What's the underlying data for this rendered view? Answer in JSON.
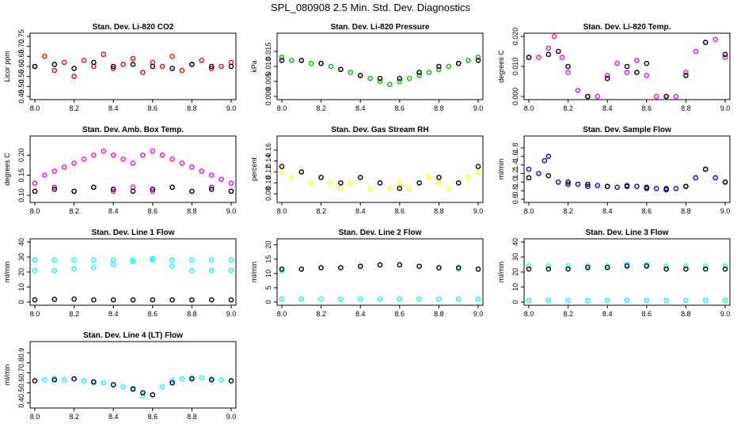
{
  "page": {
    "title": "SPL_080908  2.5 Min. Std. Dev. Diagnostics"
  },
  "chart_data": [
    {
      "type": "scatter",
      "title": "Stan. Dev. Li-820 CO2",
      "ylabel": "Licor ppm",
      "xlim": [
        8.0,
        9.0
      ],
      "ylim": [
        0.45,
        0.75
      ],
      "xticks": [
        "8.0",
        "8.2",
        "8.4",
        "8.6",
        "8.8",
        "9.0"
      ],
      "yticks": [
        "0.45",
        "0.50",
        "0.55",
        "0.60",
        "0.65",
        "0.70",
        "0.75"
      ],
      "colors": [
        "#ff0000",
        "#000000"
      ],
      "series": [
        {
          "color": "#ff0000",
          "x": [
            8.0,
            8.05,
            8.1,
            8.15,
            8.2,
            8.25,
            8.3,
            8.35,
            8.4,
            8.45,
            8.5,
            8.55,
            8.6,
            8.65,
            8.7,
            8.75,
            8.8,
            8.85,
            8.9,
            8.95,
            9.0
          ],
          "y": [
            0.6,
            0.65,
            0.58,
            0.62,
            0.55,
            0.63,
            0.6,
            0.66,
            0.59,
            0.61,
            0.64,
            0.57,
            0.62,
            0.6,
            0.65,
            0.58,
            0.61,
            0.63,
            0.59,
            0.6,
            0.62
          ]
        },
        {
          "color": "#000000",
          "x": [
            8.0,
            8.1,
            8.2,
            8.3,
            8.4,
            8.5,
            8.6,
            8.7,
            8.8,
            8.9,
            9.0
          ],
          "y": [
            0.6,
            0.61,
            0.59,
            0.62,
            0.6,
            0.61,
            0.6,
            0.59,
            0.61,
            0.6,
            0.6
          ]
        }
      ]
    },
    {
      "type": "scatter",
      "title": "Stan. Dev. Li-820 Pressure",
      "ylabel": "kPa",
      "xlim": [
        8.0,
        9.0
      ],
      "ylim": [
        0.0,
        0.02
      ],
      "xticks": [
        "8.0",
        "8.2",
        "8.4",
        "8.6",
        "8.8",
        "9.0"
      ],
      "yticks": [
        "0.000",
        "0.005",
        "0.010",
        "0.015"
      ],
      "colors": [
        "#00c000",
        "#000000"
      ],
      "series": [
        {
          "color": "#00c000",
          "x": [
            8.0,
            8.05,
            8.1,
            8.15,
            8.2,
            8.25,
            8.3,
            8.35,
            8.4,
            8.45,
            8.5,
            8.55,
            8.6,
            8.65,
            8.7,
            8.75,
            8.8,
            8.85,
            8.9,
            8.95,
            9.0
          ],
          "y": [
            0.013,
            0.012,
            0.012,
            0.011,
            0.011,
            0.01,
            0.009,
            0.008,
            0.007,
            0.006,
            0.005,
            0.004,
            0.005,
            0.006,
            0.007,
            0.008,
            0.009,
            0.01,
            0.011,
            0.012,
            0.013
          ]
        },
        {
          "color": "#000000",
          "x": [
            8.0,
            8.1,
            8.2,
            8.3,
            8.4,
            8.5,
            8.6,
            8.7,
            8.8,
            8.9,
            9.0
          ],
          "y": [
            0.012,
            0.012,
            0.011,
            0.009,
            0.007,
            0.006,
            0.006,
            0.008,
            0.01,
            0.011,
            0.012
          ]
        }
      ]
    },
    {
      "type": "scatter",
      "title": "Stan. Dev. Li-820 Temp.",
      "ylabel": "degrees C",
      "xlim": [
        8.0,
        9.0
      ],
      "ylim": [
        0.0,
        0.02
      ],
      "xticks": [
        "8.0",
        "8.2",
        "8.4",
        "8.6",
        "8.8",
        "9.0"
      ],
      "yticks": [
        "0.000",
        "0.010",
        "0.020"
      ],
      "colors": [
        "#ff00ff",
        "#000000"
      ],
      "series": [
        {
          "color": "#ff00ff",
          "x": [
            8.0,
            8.05,
            8.1,
            8.13,
            8.17,
            8.2,
            8.25,
            8.3,
            8.35,
            8.4,
            8.45,
            8.5,
            8.55,
            8.6,
            8.65,
            8.7,
            8.75,
            8.8,
            8.85,
            8.9,
            8.95,
            9.0
          ],
          "y": [
            0.013,
            0.013,
            0.016,
            0.02,
            0.013,
            0.008,
            0.002,
            0.0,
            0.0,
            0.007,
            0.011,
            0.008,
            0.012,
            0.007,
            0.0,
            0.0,
            0.0,
            0.008,
            0.015,
            0.018,
            0.019,
            0.013
          ]
        },
        {
          "color": "#000000",
          "x": [
            8.0,
            8.1,
            8.15,
            8.2,
            8.3,
            8.4,
            8.5,
            8.55,
            8.6,
            8.7,
            8.8,
            8.9,
            9.0
          ],
          "y": [
            0.013,
            0.014,
            0.015,
            0.01,
            0.0,
            0.006,
            0.01,
            0.008,
            0.011,
            0.0,
            0.007,
            0.018,
            0.014
          ]
        }
      ]
    },
    {
      "type": "scatter",
      "title": "Stan. Dev. Amb. Box Temp.",
      "ylabel": "degrees C",
      "xlim": [
        8.0,
        9.0
      ],
      "ylim": [
        0.09,
        0.24
      ],
      "xticks": [
        "8.0",
        "8.2",
        "8.4",
        "8.6",
        "8.8",
        "9.0"
      ],
      "yticks": [
        "0.10",
        "0.15",
        "0.20"
      ],
      "colors": [
        "#ff00ff",
        "#000000"
      ],
      "series": [
        {
          "color": "#ff00ff",
          "x": [
            8.0,
            8.05,
            8.1,
            8.15,
            8.2,
            8.25,
            8.3,
            8.35,
            8.4,
            8.45,
            8.5,
            8.55,
            8.6,
            8.65,
            8.7,
            8.75,
            8.8,
            8.85,
            8.9,
            8.95,
            9.0
          ],
          "y": [
            0.13,
            0.15,
            0.16,
            0.17,
            0.18,
            0.19,
            0.2,
            0.21,
            0.2,
            0.19,
            0.18,
            0.2,
            0.21,
            0.2,
            0.19,
            0.18,
            0.17,
            0.16,
            0.15,
            0.14,
            0.13
          ]
        },
        {
          "color": "#ff00ff",
          "x": [
            8.0,
            8.1,
            8.2,
            8.3,
            8.4,
            8.5,
            8.6,
            8.7,
            8.8,
            8.9,
            9.0
          ],
          "y": [
            0.11,
            0.12,
            0.11,
            0.12,
            0.11,
            0.12,
            0.11,
            0.12,
            0.11,
            0.12,
            0.11
          ]
        },
        {
          "color": "#000000",
          "x": [
            8.0,
            8.1,
            8.2,
            8.3,
            8.4,
            8.5,
            8.6,
            8.7,
            8.8,
            8.9,
            9.0
          ],
          "y": [
            0.11,
            0.115,
            0.11,
            0.12,
            0.115,
            0.11,
            0.115,
            0.12,
            0.11,
            0.115,
            0.11
          ]
        }
      ]
    },
    {
      "type": "scatter",
      "title": "Stan. Dev. Gas Stream RH",
      "ylabel": "percent",
      "xlim": [
        8.0,
        9.0
      ],
      "ylim": [
        0.07,
        0.18
      ],
      "xticks": [
        "8.0",
        "8.2",
        "8.4",
        "8.6",
        "8.8",
        "9.0"
      ],
      "yticks": [
        "0.08",
        "0.10",
        "0.12",
        "0.14",
        "0.16"
      ],
      "colors": [
        "#ffff00",
        "#000000"
      ],
      "series": [
        {
          "color": "#ffff00",
          "x": [
            8.0,
            8.05,
            8.1,
            8.15,
            8.2,
            8.25,
            8.3,
            8.35,
            8.4,
            8.45,
            8.5,
            8.55,
            8.6,
            8.65,
            8.7,
            8.75,
            8.8,
            8.85,
            8.9,
            8.95,
            9.0
          ],
          "y": [
            0.12,
            0.11,
            0.12,
            0.1,
            0.11,
            0.1,
            0.09,
            0.1,
            0.11,
            0.09,
            0.1,
            0.09,
            0.1,
            0.09,
            0.1,
            0.11,
            0.1,
            0.09,
            0.1,
            0.11,
            0.12
          ]
        },
        {
          "color": "#000000",
          "x": [
            8.0,
            8.1,
            8.2,
            8.3,
            8.4,
            8.5,
            8.6,
            8.7,
            8.8,
            8.9,
            9.0
          ],
          "y": [
            0.13,
            0.12,
            0.11,
            0.1,
            0.11,
            0.1,
            0.09,
            0.1,
            0.11,
            0.1,
            0.13
          ]
        }
      ]
    },
    {
      "type": "scatter",
      "title": "Stan. Dev. Sample Flow",
      "ylabel": "ml/min",
      "xlim": [
        8.0,
        9.0
      ],
      "ylim": [
        0.6,
        2.0
      ],
      "xticks": [
        "8.0",
        "8.2",
        "8.4",
        "8.6",
        "8.8",
        "9.0"
      ],
      "yticks": [
        "0.6",
        "0.8",
        "1.0",
        "1.2",
        "1.4",
        "1.6",
        "1.8"
      ],
      "colors": [
        "#0000ff",
        "#000000"
      ],
      "series": [
        {
          "color": "#0000ff",
          "x": [
            8.0,
            8.05,
            8.08,
            8.1,
            8.15,
            8.2,
            8.25,
            8.3,
            8.35,
            8.4,
            8.45,
            8.5,
            8.55,
            8.6,
            8.65,
            8.7,
            8.75,
            8.8,
            8.85,
            8.9,
            8.95,
            9.0
          ],
          "y": [
            1.3,
            1.2,
            1.5,
            1.6,
            1.0,
            0.95,
            0.95,
            0.9,
            0.92,
            0.9,
            0.88,
            0.92,
            0.9,
            0.85,
            0.85,
            0.82,
            0.85,
            0.9,
            1.1,
            1.3,
            1.1,
            1.0
          ]
        },
        {
          "color": "#000000",
          "x": [
            8.0,
            8.1,
            8.2,
            8.3,
            8.4,
            8.5,
            8.6,
            8.7,
            8.8,
            8.9,
            9.0
          ],
          "y": [
            1.1,
            1.15,
            1.0,
            0.95,
            0.9,
            0.9,
            0.88,
            0.85,
            0.9,
            1.3,
            1.0
          ]
        }
      ]
    },
    {
      "type": "scatter",
      "title": "Stan. Dev. Line 1 Flow",
      "ylabel": "ml/min",
      "xlim": [
        8.0,
        9.0
      ],
      "ylim": [
        0,
        40
      ],
      "xticks": [
        "8.0",
        "8.2",
        "8.4",
        "8.6",
        "8.8",
        "9.0"
      ],
      "yticks": [
        "0",
        "10",
        "20",
        "30",
        "40"
      ],
      "colors": [
        "#00ffff",
        "#000000"
      ],
      "series": [
        {
          "color": "#00ffff",
          "x": [
            8.0,
            8.1,
            8.2,
            8.3,
            8.4,
            8.5,
            8.6,
            8.7,
            8.8,
            8.9,
            9.0
          ],
          "y": [
            28,
            28,
            28,
            28,
            28,
            28,
            29,
            28,
            28,
            28,
            28
          ]
        },
        {
          "color": "#00ffff",
          "x": [
            8.0,
            8.1,
            8.2,
            8.3,
            8.4,
            8.5,
            8.6,
            8.7,
            8.8,
            8.9,
            9.0
          ],
          "y": [
            21,
            21,
            22,
            23,
            25,
            27,
            28,
            24,
            21,
            21,
            21
          ]
        },
        {
          "color": "#000000",
          "x": [
            8.0,
            8.1,
            8.2,
            8.3,
            8.4,
            8.5,
            8.6,
            8.7,
            8.8,
            8.9,
            9.0
          ],
          "y": [
            1.5,
            1.8,
            2.0,
            1.5,
            1.5,
            1.5,
            1.5,
            1.5,
            1.5,
            1.5,
            1.5
          ]
        }
      ]
    },
    {
      "type": "scatter",
      "title": "Stan. Dev. Line 2 Flow",
      "ylabel": "ml/min",
      "xlim": [
        8.0,
        9.0
      ],
      "ylim": [
        0,
        21
      ],
      "xticks": [
        "8.0",
        "8.2",
        "8.4",
        "8.6",
        "8.8",
        "9.0"
      ],
      "yticks": [
        "0",
        "5",
        "10",
        "15",
        "20"
      ],
      "colors": [
        "#00ffff",
        "#000000"
      ],
      "series": [
        {
          "color": "#00ffff",
          "x": [
            8.0,
            8.1,
            8.2,
            8.3,
            8.4,
            8.5,
            8.6,
            8.7,
            8.8,
            8.9,
            9.0
          ],
          "y": [
            11,
            11.5,
            12,
            12,
            12.5,
            13,
            13,
            12.5,
            12,
            11.5,
            11.5
          ]
        },
        {
          "color": "#00ffff",
          "x": [
            8.0,
            8.1,
            8.2,
            8.3,
            8.4,
            8.5,
            8.6,
            8.7,
            8.8,
            8.9,
            9.0
          ],
          "y": [
            1,
            1,
            1,
            1,
            1,
            1,
            1,
            1,
            1,
            1,
            1
          ]
        },
        {
          "color": "#000000",
          "x": [
            8.0,
            8.1,
            8.2,
            8.3,
            8.4,
            8.5,
            8.6,
            8.7,
            8.8,
            8.9,
            9.0
          ],
          "y": [
            11.5,
            11.5,
            12,
            12,
            12.5,
            13,
            13,
            12.5,
            12,
            12,
            11.5
          ]
        }
      ]
    },
    {
      "type": "scatter",
      "title": "Stan. Dev. Line 3 Flow",
      "ylabel": "ml/min",
      "xlim": [
        8.0,
        9.0
      ],
      "ylim": [
        0,
        40
      ],
      "xticks": [
        "8.0",
        "8.2",
        "8.4",
        "8.6",
        "8.8",
        "9.0"
      ],
      "yticks": [
        "0",
        "10",
        "20",
        "30",
        "40"
      ],
      "colors": [
        "#00ffff",
        "#000000"
      ],
      "series": [
        {
          "color": "#00ffff",
          "x": [
            8.0,
            8.1,
            8.2,
            8.3,
            8.4,
            8.5,
            8.6,
            8.7,
            8.8,
            8.9,
            9.0
          ],
          "y": [
            24,
            24,
            24,
            24,
            24,
            25,
            25,
            24,
            24,
            24,
            24
          ]
        },
        {
          "color": "#00ffff",
          "x": [
            8.0,
            8.1,
            8.2,
            8.3,
            8.4,
            8.5,
            8.6,
            8.7,
            8.8,
            8.9,
            9.0
          ],
          "y": [
            1,
            1,
            1,
            1,
            1,
            1,
            1,
            1,
            1,
            1,
            1
          ]
        },
        {
          "color": "#000000",
          "x": [
            8.0,
            8.1,
            8.2,
            8.3,
            8.4,
            8.5,
            8.6,
            8.7,
            8.8,
            8.9,
            9.0
          ],
          "y": [
            22,
            22,
            22,
            23,
            23,
            24,
            24,
            22,
            22,
            22,
            22
          ]
        }
      ]
    },
    {
      "type": "scatter",
      "title": "Stan. Dev. Line 4 (LT) Flow",
      "ylabel": "ml/min",
      "xlim": [
        8.0,
        9.0
      ],
      "ylim": [
        0.38,
        0.98
      ],
      "xticks": [
        "8.0",
        "8.2",
        "8.4",
        "8.6",
        "8.8",
        "9.0"
      ],
      "yticks": [
        "0.4",
        "0.5",
        "0.6",
        "0.7",
        "0.8",
        "0.9"
      ],
      "colors": [
        "#00ffff",
        "#000000"
      ],
      "series": [
        {
          "color": "#00ffff",
          "x": [
            8.0,
            8.05,
            8.1,
            8.15,
            8.2,
            8.25,
            8.3,
            8.35,
            8.4,
            8.45,
            8.5,
            8.55,
            8.6,
            8.65,
            8.7,
            8.75,
            8.8,
            8.85,
            8.9,
            8.95,
            9.0
          ],
          "y": [
            0.62,
            0.63,
            0.64,
            0.63,
            0.64,
            0.62,
            0.6,
            0.6,
            0.58,
            0.56,
            0.53,
            0.47,
            0.48,
            0.56,
            0.62,
            0.64,
            0.65,
            0.65,
            0.64,
            0.63,
            0.62
          ]
        },
        {
          "color": "#000000",
          "x": [
            8.0,
            8.1,
            8.2,
            8.3,
            8.4,
            8.5,
            8.55,
            8.6,
            8.7,
            8.8,
            8.9,
            9.0
          ],
          "y": [
            0.62,
            0.63,
            0.64,
            0.61,
            0.58,
            0.54,
            0.5,
            0.48,
            0.6,
            0.64,
            0.63,
            0.62
          ]
        }
      ]
    }
  ]
}
